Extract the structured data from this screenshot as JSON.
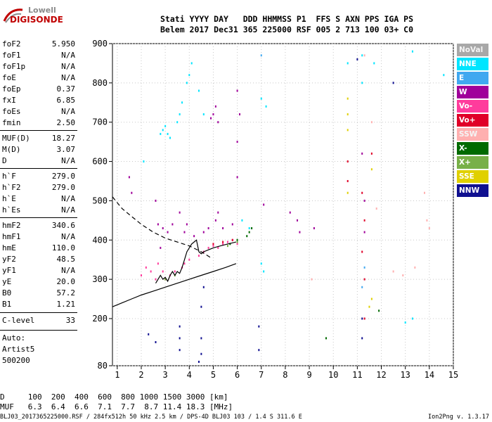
{
  "logo": {
    "line1": "Lowell",
    "line2": "DIGISONDE"
  },
  "header": {
    "line1": "Stati YYYY DAY   DDD HHMMSS P1  FFS S AXN PPS IGA PS",
    "line2": "Belem 2017 Dec31 365 225000 RSF 005 2 713 100 03+ C0"
  },
  "params": [
    {
      "k": "foF2",
      "v": "5.950"
    },
    {
      "k": "foF1",
      "v": "N/A"
    },
    {
      "k": "foF1p",
      "v": "N/A"
    },
    {
      "k": "foE",
      "v": "N/A"
    },
    {
      "k": "foEp",
      "v": "0.37"
    },
    {
      "k": "fxI",
      "v": "6.85"
    },
    {
      "k": "foEs",
      "v": "N/A"
    },
    {
      "k": "fmin",
      "v": "2.50"
    },
    {
      "k": "MUF(D)",
      "v": "18.27"
    },
    {
      "k": "M(D)",
      "v": "3.07"
    },
    {
      "k": "D",
      "v": "N/A"
    },
    {
      "k": "h`F",
      "v": "279.0"
    },
    {
      "k": "h`F2",
      "v": "279.0"
    },
    {
      "k": "h`E",
      "v": "N/A"
    },
    {
      "k": "h`Es",
      "v": "N/A"
    },
    {
      "k": "hmF2",
      "v": "340.6"
    },
    {
      "k": "hmF1",
      "v": "N/A"
    },
    {
      "k": "hmE",
      "v": "110.0"
    },
    {
      "k": "yF2",
      "v": "48.5"
    },
    {
      "k": "yF1",
      "v": "N/A"
    },
    {
      "k": "yE",
      "v": "20.0"
    },
    {
      "k": "B0",
      "v": "57.2"
    },
    {
      "k": "B1",
      "v": "1.21"
    },
    {
      "k": "C-level",
      "v": "33"
    }
  ],
  "auto": {
    "line1": "Auto:",
    "line2": "Artist5",
    "line3": "500200"
  },
  "legend": [
    {
      "label": "NoVal",
      "color": "#a8a8a8"
    },
    {
      "label": "NNE",
      "color": "#00e5ff"
    },
    {
      "label": "E",
      "color": "#40a8f0"
    },
    {
      "label": "W",
      "color": "#a0009a"
    },
    {
      "label": "Vo-",
      "color": "#ff3c9c"
    },
    {
      "label": "Vo+",
      "color": "#e00028"
    },
    {
      "label": "SSW",
      "color": "#ffb0b0"
    },
    {
      "label": "X-",
      "color": "#006a00"
    },
    {
      "label": "X+",
      "color": "#78b048"
    },
    {
      "label": "SSE",
      "color": "#e0d000"
    },
    {
      "label": "NNW",
      "color": "#101090"
    }
  ],
  "muf_table": {
    "line1": "D     100  200  400  600  800 1000 1500 3000 [km]",
    "line2": "MUF   6.3  6.4  6.6  7.1  7.7  8.7 11.4 18.3 [MHz]"
  },
  "footer": {
    "left": "BLJ03_2017365225000.RSF / 284fx512h 50 kHz 2.5 km / DPS-4D BLJ03 103 / 1.4 S 311.6 E",
    "right": "Ion2Png v. 1.3.17"
  },
  "chart_data": {
    "type": "scatter",
    "xlim": [
      0.8,
      15
    ],
    "ylim": [
      80,
      900
    ],
    "x_ticks": [
      1,
      2,
      3,
      4,
      5,
      6,
      7,
      8,
      9,
      10,
      11,
      12,
      13,
      14,
      15
    ],
    "y_ticks": [
      80,
      200,
      300,
      400,
      500,
      600,
      700,
      800,
      900
    ],
    "grid": true,
    "legend_position": "right",
    "series": [
      {
        "name": "E",
        "color_key": 1,
        "points": [
          [
            2.8,
            670
          ],
          [
            2.9,
            680
          ],
          [
            3.0,
            690
          ],
          [
            3.1,
            670
          ],
          [
            3.2,
            660
          ],
          [
            3.5,
            700
          ],
          [
            3.6,
            720
          ],
          [
            3.7,
            750
          ],
          [
            3.9,
            800
          ],
          [
            4.0,
            820
          ],
          [
            4.1,
            850
          ],
          [
            4.4,
            780
          ],
          [
            4.6,
            720
          ],
          [
            6.2,
            450
          ],
          [
            6.5,
            430
          ],
          [
            7.0,
            340
          ],
          [
            7.1,
            320
          ],
          [
            11.2,
            870
          ],
          [
            11.2,
            800
          ],
          [
            10.6,
            850
          ],
          [
            11.7,
            850
          ],
          [
            13.3,
            880
          ],
          [
            14.6,
            820
          ],
          [
            13.3,
            200
          ],
          [
            13.0,
            190
          ],
          [
            7.0,
            760
          ],
          [
            7.2,
            740
          ],
          [
            2.1,
            600
          ]
        ]
      },
      {
        "name": "W",
        "color_key": 3,
        "points": [
          [
            2.7,
            440
          ],
          [
            2.9,
            430
          ],
          [
            3.1,
            420
          ],
          [
            3.3,
            440
          ],
          [
            2.6,
            500
          ],
          [
            2.8,
            380
          ],
          [
            3.6,
            470
          ],
          [
            3.8,
            420
          ],
          [
            3.9,
            440
          ],
          [
            4.2,
            410
          ],
          [
            4.6,
            420
          ],
          [
            4.8,
            430
          ],
          [
            5.1,
            450
          ],
          [
            5.2,
            470
          ],
          [
            5.4,
            430
          ],
          [
            5.8,
            440
          ],
          [
            6.0,
            560
          ],
          [
            6.0,
            650
          ],
          [
            6.1,
            720
          ],
          [
            6.0,
            780
          ],
          [
            4.9,
            710
          ],
          [
            5.0,
            720
          ],
          [
            5.1,
            740
          ],
          [
            5.2,
            700
          ],
          [
            7.1,
            490
          ],
          [
            8.2,
            470
          ],
          [
            8.5,
            450
          ],
          [
            9.2,
            430
          ],
          [
            8.6,
            420
          ],
          [
            11.2,
            620
          ],
          [
            11.3,
            500
          ],
          [
            11.3,
            420
          ],
          [
            1.5,
            560
          ],
          [
            1.6,
            520
          ]
        ]
      },
      {
        "name": "Vo-",
        "color_key": 4,
        "points": [
          [
            2.0,
            310
          ],
          [
            2.2,
            330
          ],
          [
            2.4,
            320
          ],
          [
            2.6,
            300
          ],
          [
            2.7,
            340
          ],
          [
            2.9,
            320
          ],
          [
            3.0,
            300
          ],
          [
            3.2,
            310
          ],
          [
            3.4,
            320
          ],
          [
            3.7,
            330
          ],
          [
            3.8,
            340
          ],
          [
            4.0,
            350
          ],
          [
            4.4,
            360
          ],
          [
            4.6,
            370
          ],
          [
            4.8,
            380
          ],
          [
            5.0,
            385
          ],
          [
            5.2,
            380
          ],
          [
            5.4,
            390
          ],
          [
            5.6,
            395
          ],
          [
            5.8,
            400
          ],
          [
            6.0,
            390
          ]
        ]
      },
      {
        "name": "Vo+",
        "color_key": 5,
        "points": [
          [
            11.2,
            370
          ],
          [
            11.3,
            450
          ],
          [
            11.2,
            520
          ],
          [
            11.3,
            300
          ],
          [
            11.3,
            200
          ],
          [
            11.6,
            620
          ],
          [
            10.6,
            600
          ],
          [
            10.6,
            550
          ],
          [
            5.0,
            390
          ],
          [
            5.4,
            395
          ],
          [
            5.8,
            400
          ]
        ]
      },
      {
        "name": "X-",
        "color_key": 7,
        "points": [
          [
            6.0,
            400
          ],
          [
            6.4,
            410
          ],
          [
            6.5,
            420
          ],
          [
            6.6,
            430
          ],
          [
            5.7,
            390
          ],
          [
            11.9,
            220
          ],
          [
            9.7,
            150
          ]
        ]
      },
      {
        "name": "X+",
        "color_key": 8,
        "points": [
          [
            6.0,
            395
          ],
          [
            5.6,
            385
          ],
          [
            3.0,
            300
          ],
          [
            3.4,
            310
          ]
        ]
      },
      {
        "name": "SSE",
        "color_key": 9,
        "points": [
          [
            10.6,
            760
          ],
          [
            10.6,
            720
          ],
          [
            10.6,
            680
          ],
          [
            10.6,
            520
          ],
          [
            11.6,
            580
          ],
          [
            11.6,
            250
          ],
          [
            11.5,
            230
          ]
        ]
      },
      {
        "name": "NNW",
        "color_key": 10,
        "points": [
          [
            3.6,
            180
          ],
          [
            3.6,
            150
          ],
          [
            3.6,
            120
          ],
          [
            4.5,
            150
          ],
          [
            4.5,
            110
          ],
          [
            4.4,
            90
          ],
          [
            4.5,
            230
          ],
          [
            4.6,
            280
          ],
          [
            6.9,
            180
          ],
          [
            6.9,
            120
          ],
          [
            12.5,
            800
          ],
          [
            2.6,
            140
          ],
          [
            2.3,
            160
          ],
          [
            11.2,
            200
          ],
          [
            11.2,
            150
          ],
          [
            11.0,
            860
          ]
        ]
      },
      {
        "name": "NNE",
        "color_key": 2,
        "points": [
          [
            7.0,
            870
          ],
          [
            11.2,
            280
          ],
          [
            11.3,
            330
          ]
        ]
      },
      {
        "name": "SSW",
        "color_key": 6,
        "points": [
          [
            11.6,
            700
          ],
          [
            12.5,
            320
          ],
          [
            11.8,
            480
          ],
          [
            13.8,
            520
          ],
          [
            13.9,
            450
          ],
          [
            14.0,
            430
          ],
          [
            13.4,
            330
          ],
          [
            12.9,
            310
          ],
          [
            9.1,
            300
          ],
          [
            11.3,
            870
          ]
        ]
      }
    ],
    "curves": [
      {
        "name": "virtual-height-trace",
        "style": "solid",
        "points": [
          [
            2.6,
            290
          ],
          [
            2.7,
            300
          ],
          [
            2.8,
            310
          ],
          [
            2.9,
            300
          ],
          [
            3.0,
            305
          ],
          [
            3.1,
            295
          ],
          [
            3.2,
            310
          ],
          [
            3.3,
            320
          ],
          [
            3.4,
            310
          ],
          [
            3.5,
            320
          ],
          [
            3.6,
            315
          ],
          [
            3.7,
            330
          ],
          [
            3.8,
            350
          ],
          [
            3.9,
            370
          ],
          [
            4.0,
            380
          ],
          [
            4.1,
            390
          ],
          [
            4.2,
            395
          ],
          [
            4.3,
            400
          ],
          [
            4.4,
            370
          ],
          [
            4.5,
            365
          ],
          [
            4.6,
            370
          ],
          [
            4.8,
            375
          ],
          [
            5.0,
            380
          ],
          [
            5.3,
            385
          ],
          [
            5.6,
            390
          ],
          [
            5.95,
            395
          ]
        ]
      },
      {
        "name": "profile-lower",
        "style": "solid",
        "points": [
          [
            0.8,
            230
          ],
          [
            1.2,
            240
          ],
          [
            1.6,
            250
          ],
          [
            2.0,
            260
          ],
          [
            2.5,
            270
          ],
          [
            3.0,
            280
          ],
          [
            3.5,
            290
          ],
          [
            4.0,
            300
          ],
          [
            4.5,
            310
          ],
          [
            5.0,
            320
          ],
          [
            5.5,
            330
          ],
          [
            5.95,
            340
          ]
        ]
      },
      {
        "name": "profile-bottomside",
        "style": "dashed",
        "points": [
          [
            0.8,
            510
          ],
          [
            1.2,
            480
          ],
          [
            1.6,
            460
          ],
          [
            2.0,
            440
          ],
          [
            2.5,
            420
          ],
          [
            3.0,
            405
          ],
          [
            3.5,
            395
          ],
          [
            4.0,
            385
          ],
          [
            4.5,
            370
          ],
          [
            4.9,
            355
          ]
        ]
      }
    ]
  }
}
